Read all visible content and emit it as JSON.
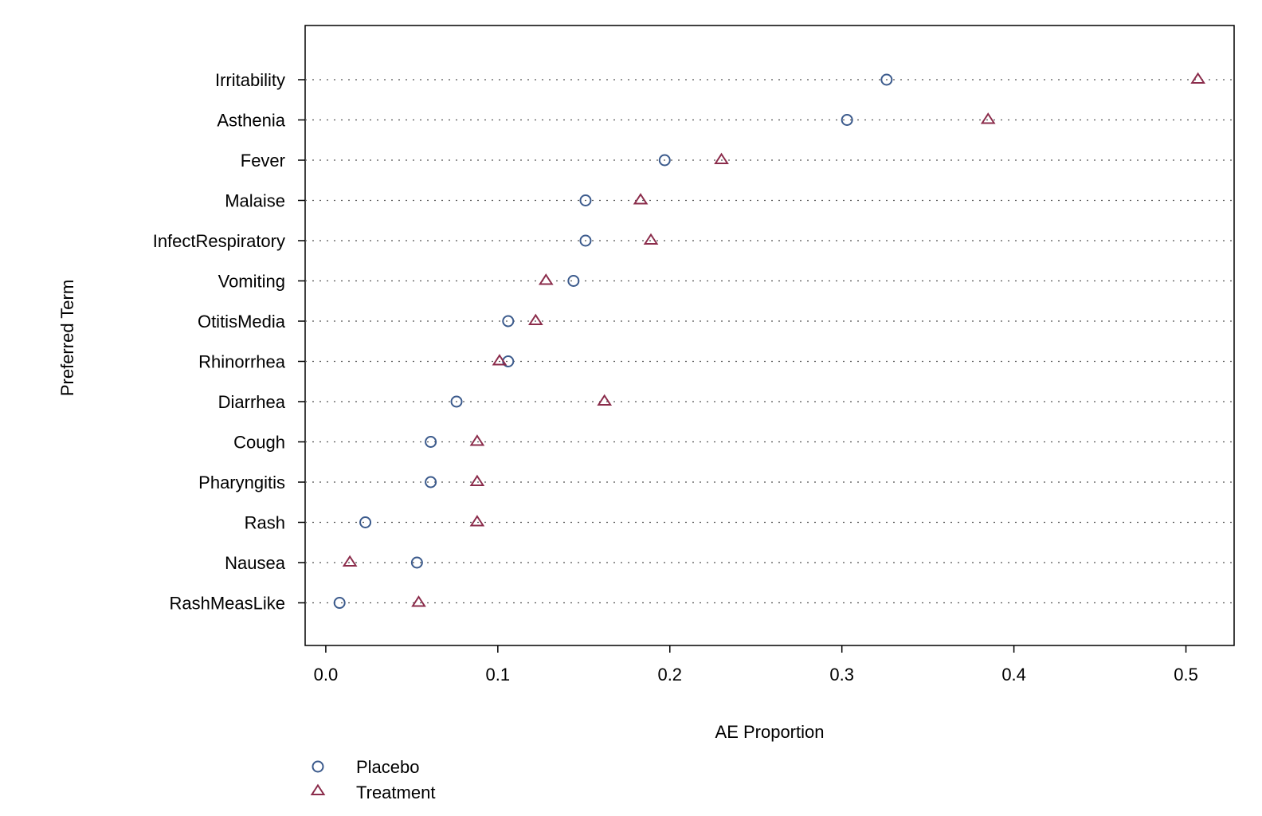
{
  "chart_data": {
    "type": "scatter",
    "title": "",
    "xlabel": "AE Proportion",
    "ylabel": "Preferred Term",
    "xlim": [
      -0.012,
      0.528
    ],
    "xticks": [
      0.0,
      0.1,
      0.2,
      0.3,
      0.4,
      0.5
    ],
    "xtick_labels": [
      "0.0",
      "0.1",
      "0.2",
      "0.3",
      "0.4",
      "0.5"
    ],
    "categories": [
      "Irritability",
      "Asthenia",
      "Fever",
      "Malaise",
      "InfectRespiratory",
      "Vomiting",
      "OtitisMedia",
      "Rhinorrhea",
      "Diarrhea",
      "Cough",
      "Pharyngitis",
      "Rash",
      "Nausea",
      "RashMeasLike"
    ],
    "series": [
      {
        "name": "Placebo",
        "marker": "circle",
        "color": "#3b5a8c",
        "values": [
          0.326,
          0.303,
          0.197,
          0.151,
          0.151,
          0.144,
          0.106,
          0.106,
          0.076,
          0.061,
          0.061,
          0.023,
          0.053,
          0.008
        ]
      },
      {
        "name": "Treatment",
        "marker": "triangle",
        "color": "#8b2c4b",
        "values": [
          0.507,
          0.385,
          0.23,
          0.183,
          0.189,
          0.128,
          0.122,
          0.101,
          0.162,
          0.088,
          0.088,
          0.088,
          0.014,
          0.054
        ]
      }
    ],
    "grid": "dotted horizontal",
    "legend_position": "bottom-left"
  }
}
